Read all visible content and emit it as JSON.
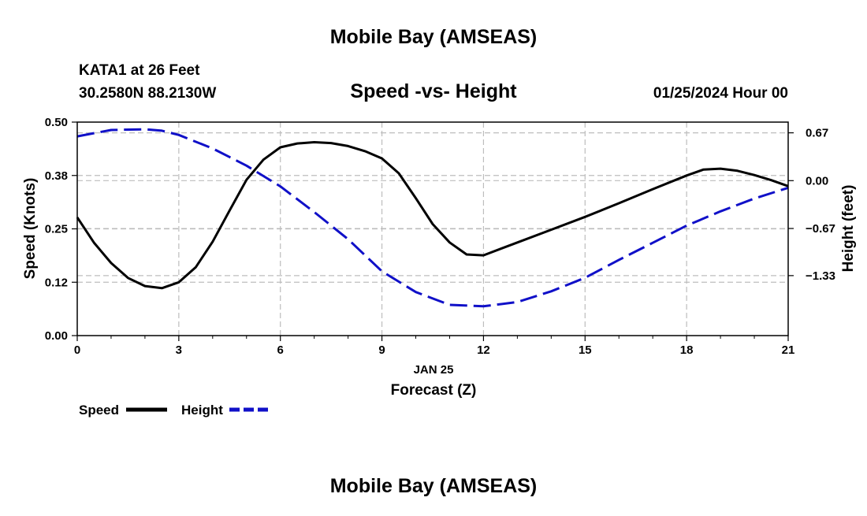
{
  "header": {
    "title": "Mobile Bay (AMSEAS)",
    "station": "KATA1 at 26 Feet",
    "coords": "30.2580N  88.2130W",
    "subtitle": "Speed -vs- Height",
    "datetime": "01/25/2024 Hour 00"
  },
  "footer": {
    "title": "Mobile Bay (AMSEAS)"
  },
  "chart_data": {
    "type": "line",
    "xlabel": "Forecast (Z)",
    "xdate_label": "JAN 25",
    "xlim": [
      0,
      21
    ],
    "xticks": [
      "0",
      "3",
      "6",
      "9",
      "12",
      "15",
      "18",
      "21"
    ],
    "ylabel": "Speed (Knots)",
    "ylim": [
      0,
      0.5
    ],
    "yticks": [
      "0.00",
      "0.12",
      "0.25",
      "0.38",
      "0.50"
    ],
    "y2label": "Height (feet)",
    "y2lim": [
      -2.17,
      0.82
    ],
    "y2ticks": [
      "0.67",
      "0.00",
      "−0.67",
      "−1.33"
    ],
    "y2tick_values": [
      0.67,
      0.0,
      -0.67,
      -1.33
    ],
    "grid": true,
    "legend_position": "bottom-left",
    "series": [
      {
        "name": "Speed",
        "axis": "left",
        "style": "solid",
        "color": "#000000",
        "x": [
          0,
          0.5,
          1,
          1.5,
          2,
          2.5,
          3,
          3.5,
          4,
          4.5,
          5,
          5.5,
          6,
          6.5,
          7,
          7.5,
          8,
          8.5,
          9,
          9.5,
          10,
          10.5,
          11,
          11.5,
          12,
          13,
          14,
          15,
          16,
          17,
          18,
          18.5,
          19,
          19.5,
          20,
          20.5,
          21
        ],
        "y": [
          0.277,
          0.217,
          0.17,
          0.135,
          0.116,
          0.111,
          0.125,
          0.16,
          0.22,
          0.293,
          0.365,
          0.412,
          0.441,
          0.45,
          0.453,
          0.451,
          0.444,
          0.432,
          0.415,
          0.38,
          0.322,
          0.261,
          0.218,
          0.19,
          0.188,
          0.218,
          0.248,
          0.278,
          0.31,
          0.343,
          0.375,
          0.389,
          0.391,
          0.386,
          0.376,
          0.364,
          0.35
        ]
      },
      {
        "name": "Height",
        "axis": "right",
        "style": "dashed",
        "color": "#1010c8",
        "x": [
          0,
          1,
          2,
          2.5,
          3,
          4,
          5,
          6,
          7,
          8,
          9,
          10,
          11,
          12,
          13,
          14,
          15,
          16,
          17,
          18,
          19,
          20,
          21
        ],
        "y": [
          0.62,
          0.71,
          0.72,
          0.7,
          0.64,
          0.45,
          0.21,
          -0.08,
          -0.44,
          -0.82,
          -1.27,
          -1.56,
          -1.74,
          -1.76,
          -1.7,
          -1.55,
          -1.36,
          -1.11,
          -0.87,
          -0.63,
          -0.43,
          -0.25,
          -0.1
        ]
      }
    ]
  }
}
